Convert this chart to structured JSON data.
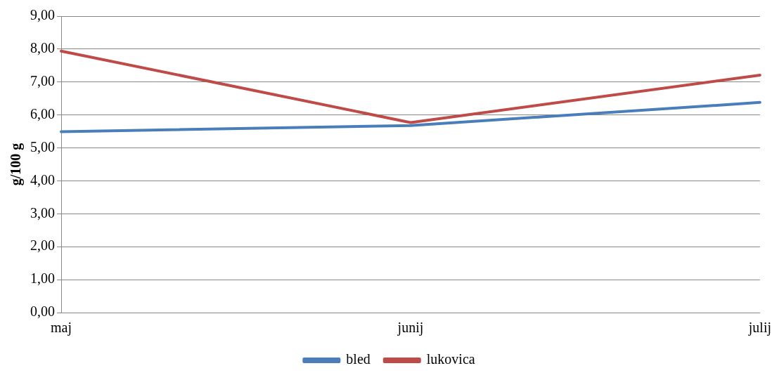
{
  "chart_data": {
    "type": "line",
    "ylabel": "g/100 g",
    "categories": [
      "maj",
      "junij",
      "julij"
    ],
    "series": [
      {
        "name": "bled",
        "color": "#4a7ebb",
        "values": [
          5.49,
          5.68,
          6.38
        ]
      },
      {
        "name": "lukovica",
        "color": "#be4b48",
        "values": [
          7.94,
          5.77,
          7.21
        ]
      }
    ],
    "ylim": [
      0,
      9
    ],
    "yticks": [
      {
        "value": 0,
        "label": "0,00"
      },
      {
        "value": 1,
        "label": "1,00"
      },
      {
        "value": 2,
        "label": "2,00"
      },
      {
        "value": 3,
        "label": "3,00"
      },
      {
        "value": 4,
        "label": "4,00"
      },
      {
        "value": 5,
        "label": "5,00"
      },
      {
        "value": 6,
        "label": "6,00"
      },
      {
        "value": 7,
        "label": "7,00"
      },
      {
        "value": 8,
        "label": "8,00"
      },
      {
        "value": 9,
        "label": "9,00"
      }
    ],
    "grid": "y",
    "legend": "bottom",
    "marker": "none",
    "line_style": "solid"
  }
}
